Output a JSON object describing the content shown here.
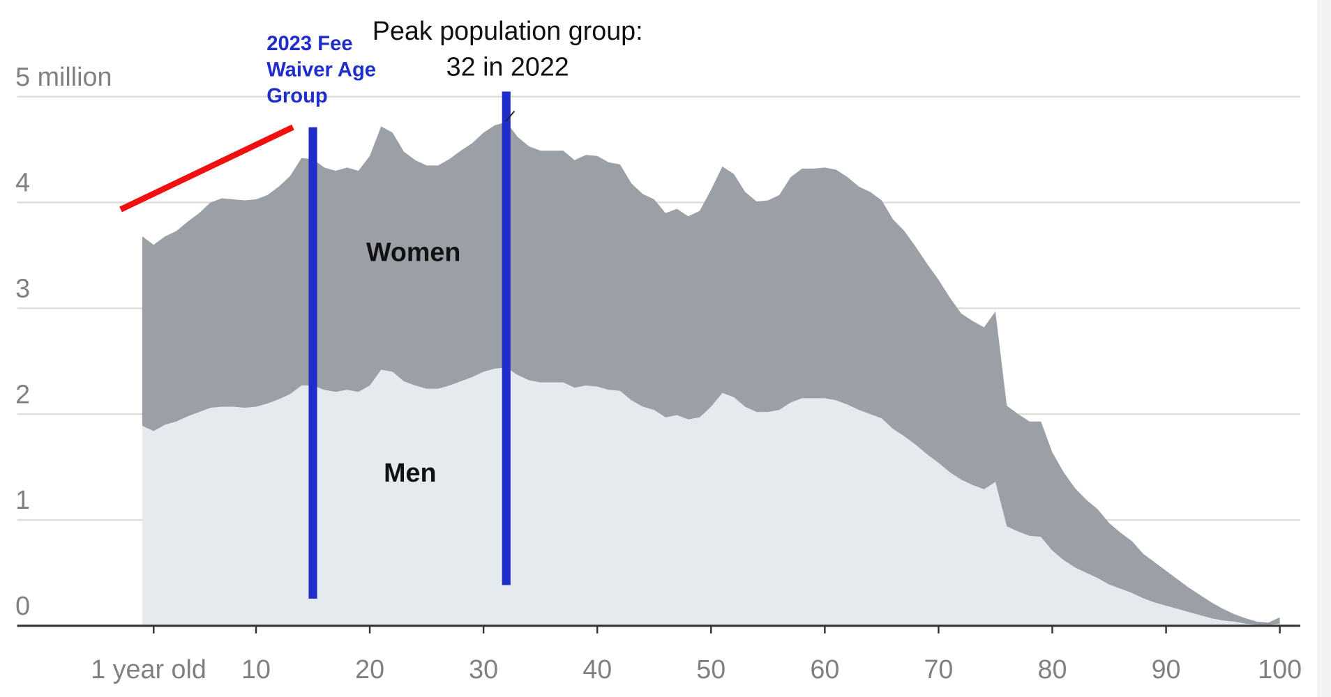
{
  "chart_data": {
    "type": "stacked_area",
    "x": [
      0,
      1,
      2,
      3,
      4,
      5,
      6,
      7,
      8,
      9,
      10,
      11,
      12,
      13,
      14,
      15,
      16,
      17,
      18,
      19,
      20,
      21,
      22,
      23,
      24,
      25,
      26,
      27,
      28,
      29,
      30,
      31,
      32,
      33,
      34,
      35,
      36,
      37,
      38,
      39,
      40,
      41,
      42,
      43,
      44,
      45,
      46,
      47,
      48,
      49,
      50,
      51,
      52,
      53,
      54,
      55,
      56,
      57,
      58,
      59,
      60,
      61,
      62,
      63,
      64,
      65,
      66,
      67,
      68,
      69,
      70,
      71,
      72,
      73,
      74,
      75,
      76,
      77,
      78,
      79,
      80,
      81,
      82,
      83,
      84,
      85,
      86,
      87,
      88,
      89,
      90,
      91,
      92,
      93,
      94,
      95,
      96,
      97,
      98,
      99,
      100
    ],
    "series": [
      {
        "name": "Men",
        "color": "#e5eaef",
        "values": [
          1.89,
          1.84,
          1.9,
          1.93,
          1.98,
          2.02,
          2.06,
          2.07,
          2.07,
          2.06,
          2.07,
          2.1,
          2.14,
          2.19,
          2.27,
          2.27,
          2.23,
          2.21,
          2.23,
          2.21,
          2.27,
          2.42,
          2.4,
          2.31,
          2.27,
          2.24,
          2.24,
          2.27,
          2.31,
          2.35,
          2.4,
          2.43,
          2.44,
          2.37,
          2.32,
          2.3,
          2.3,
          2.3,
          2.25,
          2.27,
          2.26,
          2.23,
          2.22,
          2.13,
          2.07,
          2.04,
          1.97,
          1.99,
          1.95,
          1.97,
          2.07,
          2.2,
          2.16,
          2.07,
          2.02,
          2.02,
          2.04,
          2.11,
          2.15,
          2.15,
          2.15,
          2.13,
          2.09,
          2.04,
          2.0,
          1.96,
          1.86,
          1.79,
          1.71,
          1.62,
          1.54,
          1.45,
          1.38,
          1.33,
          1.29,
          1.36,
          0.94,
          0.89,
          0.85,
          0.84,
          0.71,
          0.62,
          0.55,
          0.5,
          0.45,
          0.39,
          0.35,
          0.31,
          0.26,
          0.22,
          0.19,
          0.16,
          0.13,
          0.1,
          0.07,
          0.05,
          0.04,
          0.02,
          0.01,
          0.01,
          0.02
        ]
      },
      {
        "name": "Women",
        "color": "#9aa0a6",
        "values": [
          1.79,
          1.76,
          1.78,
          1.8,
          1.84,
          1.88,
          1.94,
          1.97,
          1.96,
          1.96,
          1.96,
          1.97,
          2.01,
          2.06,
          2.15,
          2.14,
          2.1,
          2.09,
          2.1,
          2.09,
          2.17,
          2.3,
          2.26,
          2.17,
          2.13,
          2.11,
          2.11,
          2.14,
          2.18,
          2.21,
          2.26,
          2.3,
          2.32,
          2.25,
          2.21,
          2.19,
          2.19,
          2.19,
          2.15,
          2.18,
          2.18,
          2.15,
          2.14,
          2.05,
          2.01,
          1.99,
          1.93,
          1.95,
          1.92,
          1.95,
          2.05,
          2.14,
          2.11,
          2.03,
          1.99,
          2.0,
          2.03,
          2.13,
          2.17,
          2.17,
          2.18,
          2.18,
          2.15,
          2.11,
          2.1,
          2.06,
          1.98,
          1.94,
          1.87,
          1.8,
          1.73,
          1.65,
          1.57,
          1.55,
          1.53,
          1.61,
          1.14,
          1.11,
          1.08,
          1.09,
          0.93,
          0.83,
          0.75,
          0.69,
          0.65,
          0.58,
          0.53,
          0.49,
          0.42,
          0.38,
          0.33,
          0.28,
          0.23,
          0.19,
          0.15,
          0.11,
          0.07,
          0.05,
          0.03,
          0.02,
          0.06
        ]
      }
    ],
    "xlim": [
      -11,
      101.8
    ],
    "xticks": [
      {
        "value": 1,
        "label": "1 year old"
      },
      10,
      20,
      30,
      40,
      50,
      60,
      70,
      80,
      90,
      100
    ],
    "ylim": [
      0,
      5
    ],
    "yticks": [
      0,
      1,
      2,
      3,
      4,
      {
        "value": 5,
        "label": "5 million"
      }
    ],
    "grid": true,
    "vertical_lines": [
      {
        "x": 15,
        "color": "#1f2ecb"
      },
      {
        "x": 32,
        "color": "#1f2ecb"
      }
    ],
    "peak_label": [
      "Peak population group:",
      "32 in 2022"
    ],
    "fee_waiver_label": [
      "2023 Fee",
      "Waiver Age",
      "Group"
    ]
  }
}
